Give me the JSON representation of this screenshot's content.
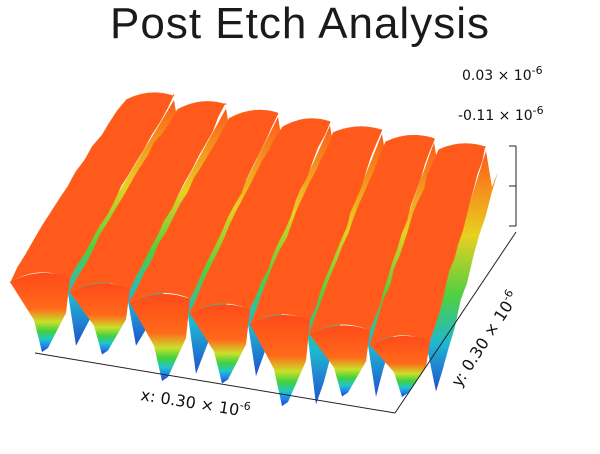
{
  "chart_data": {
    "type": "surface",
    "title": "Post Etch Analysis",
    "z_range_labels": {
      "top": "0.03 × 10",
      "top_exp": "-6",
      "bottom": "-0.11 × 10",
      "bottom_exp": "-6"
    },
    "xlabel": {
      "text": "x: 0.30 × 10",
      "exp": "-6"
    },
    "ylabel": {
      "text": "y: 0.30 × 10",
      "exp": "-6"
    },
    "z_range": [
      -1.1e-07,
      3e-08
    ],
    "x_extent": 3e-07,
    "y_extent": 3e-07,
    "ridge_count": 7,
    "colormap": [
      "#1f3fbf",
      "#1e90ff",
      "#22c7c7",
      "#3fd13f",
      "#c6e02a",
      "#ff7a1a",
      "#ff3b1a"
    ]
  }
}
